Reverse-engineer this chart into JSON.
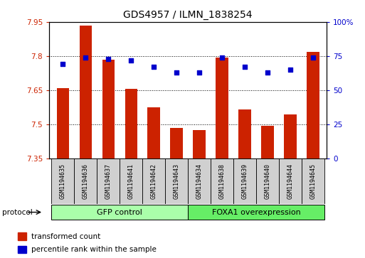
{
  "title": "GDS4957 / ILMN_1838254",
  "samples": [
    "GSM1194635",
    "GSM1194636",
    "GSM1194637",
    "GSM1194641",
    "GSM1194642",
    "GSM1194643",
    "GSM1194634",
    "GSM1194638",
    "GSM1194639",
    "GSM1194640",
    "GSM1194644",
    "GSM1194645"
  ],
  "transformed_count": [
    7.66,
    7.935,
    7.785,
    7.655,
    7.575,
    7.485,
    7.475,
    7.795,
    7.565,
    7.495,
    7.545,
    7.82
  ],
  "percentile_rank": [
    69,
    74,
    73,
    72,
    67,
    63,
    63,
    74,
    67,
    63,
    65,
    74
  ],
  "ylim_left": [
    7.35,
    7.95
  ],
  "ylim_right": [
    0,
    100
  ],
  "yticks_left": [
    7.35,
    7.5,
    7.65,
    7.8,
    7.95
  ],
  "yticks_right": [
    0,
    25,
    50,
    75,
    100
  ],
  "ytick_labels_right": [
    "0",
    "25",
    "50",
    "75",
    "100%"
  ],
  "bar_color": "#cc2200",
  "dot_color": "#0000cc",
  "groups": [
    {
      "label": "GFP control",
      "start": 0,
      "end": 6,
      "color": "#aaffaa"
    },
    {
      "label": "FOXA1 overexpression",
      "start": 6,
      "end": 12,
      "color": "#66ee66"
    }
  ],
  "protocol_label": "protocol",
  "legend_items": [
    {
      "label": "transformed count",
      "color": "#cc2200"
    },
    {
      "label": "percentile rank within the sample",
      "color": "#0000cc"
    }
  ],
  "background_color": "#ffffff",
  "tick_label_color_left": "#cc2200",
  "tick_label_color_right": "#0000cc",
  "bar_width": 0.55,
  "dot_size": 25,
  "sample_box_color": "#d0d0d0"
}
